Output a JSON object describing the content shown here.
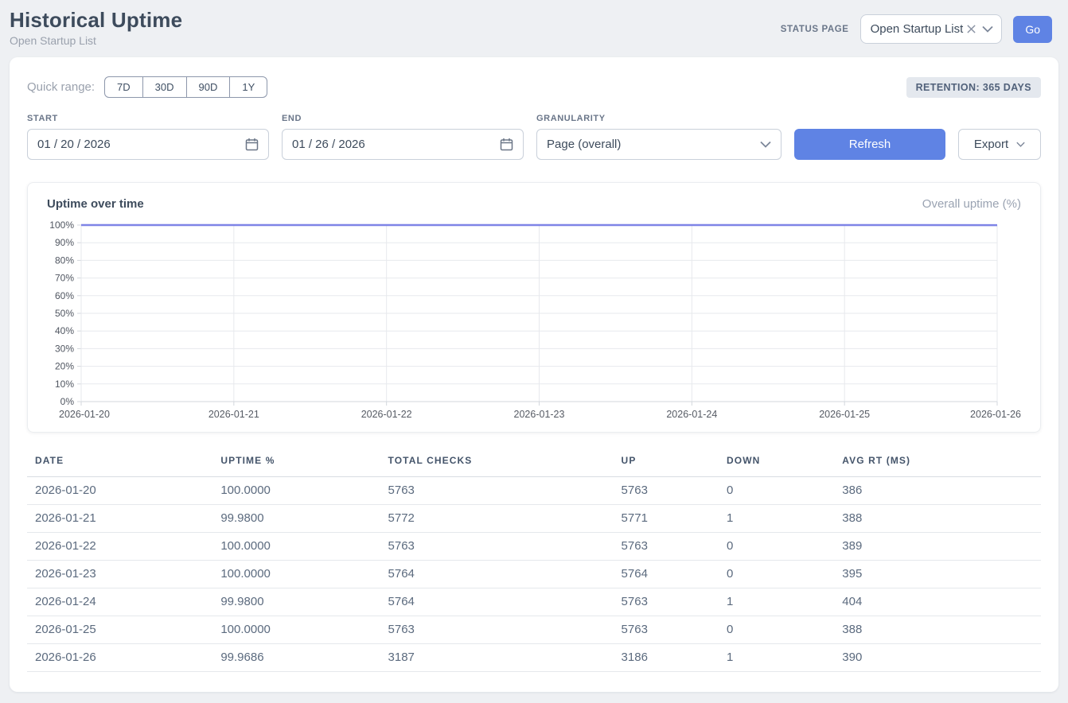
{
  "header": {
    "title": "Historical Uptime",
    "subtitle": "Open Startup List",
    "status_page_label": "STATUS PAGE",
    "status_page_value": "Open Startup List",
    "go_label": "Go"
  },
  "filters": {
    "quick_range_label": "Quick range:",
    "quick_ranges": [
      "7D",
      "30D",
      "90D",
      "1Y"
    ],
    "retention_badge": "RETENTION: 365 DAYS",
    "start_label": "START",
    "start_value": "01 / 20 / 2026",
    "end_label": "END",
    "end_value": "01 / 26 / 2026",
    "granularity_label": "GRANULARITY",
    "granularity_value": "Page (overall)",
    "refresh_label": "Refresh",
    "export_label": "Export"
  },
  "chart": {
    "title": "Uptime over time",
    "legend": "Overall uptime (%)"
  },
  "chart_data": {
    "type": "line",
    "x": [
      "2026-01-20",
      "2026-01-21",
      "2026-01-22",
      "2026-01-23",
      "2026-01-24",
      "2026-01-25",
      "2026-01-26"
    ],
    "series": [
      {
        "name": "Overall uptime (%)",
        "values": [
          100.0,
          99.98,
          100.0,
          100.0,
          99.98,
          100.0,
          99.9686
        ]
      }
    ],
    "ylim": [
      0,
      100
    ],
    "y_tick_step": 10,
    "y_tick_suffix": "%",
    "grid": true,
    "legend_position": "top-right",
    "line_color": "#7e84e6"
  },
  "table": {
    "columns": [
      "DATE",
      "UPTIME %",
      "TOTAL CHECKS",
      "UP",
      "DOWN",
      "AVG RT (MS)"
    ],
    "rows": [
      [
        "2026-01-20",
        "100.0000",
        "5763",
        "5763",
        "0",
        "386"
      ],
      [
        "2026-01-21",
        "99.9800",
        "5772",
        "5771",
        "1",
        "388"
      ],
      [
        "2026-01-22",
        "100.0000",
        "5763",
        "5763",
        "0",
        "389"
      ],
      [
        "2026-01-23",
        "100.0000",
        "5764",
        "5764",
        "0",
        "395"
      ],
      [
        "2026-01-24",
        "99.9800",
        "5764",
        "5763",
        "1",
        "404"
      ],
      [
        "2026-01-25",
        "100.0000",
        "5763",
        "5763",
        "0",
        "388"
      ],
      [
        "2026-01-26",
        "99.9686",
        "3187",
        "3186",
        "1",
        "390"
      ]
    ]
  },
  "colors": {
    "accent_blue": "#5f83e4",
    "line_purple": "#7e84e6",
    "grid_line": "#e7e9ed",
    "axis_line": "#d3d7dd",
    "page_bg": "#eef0f3"
  }
}
